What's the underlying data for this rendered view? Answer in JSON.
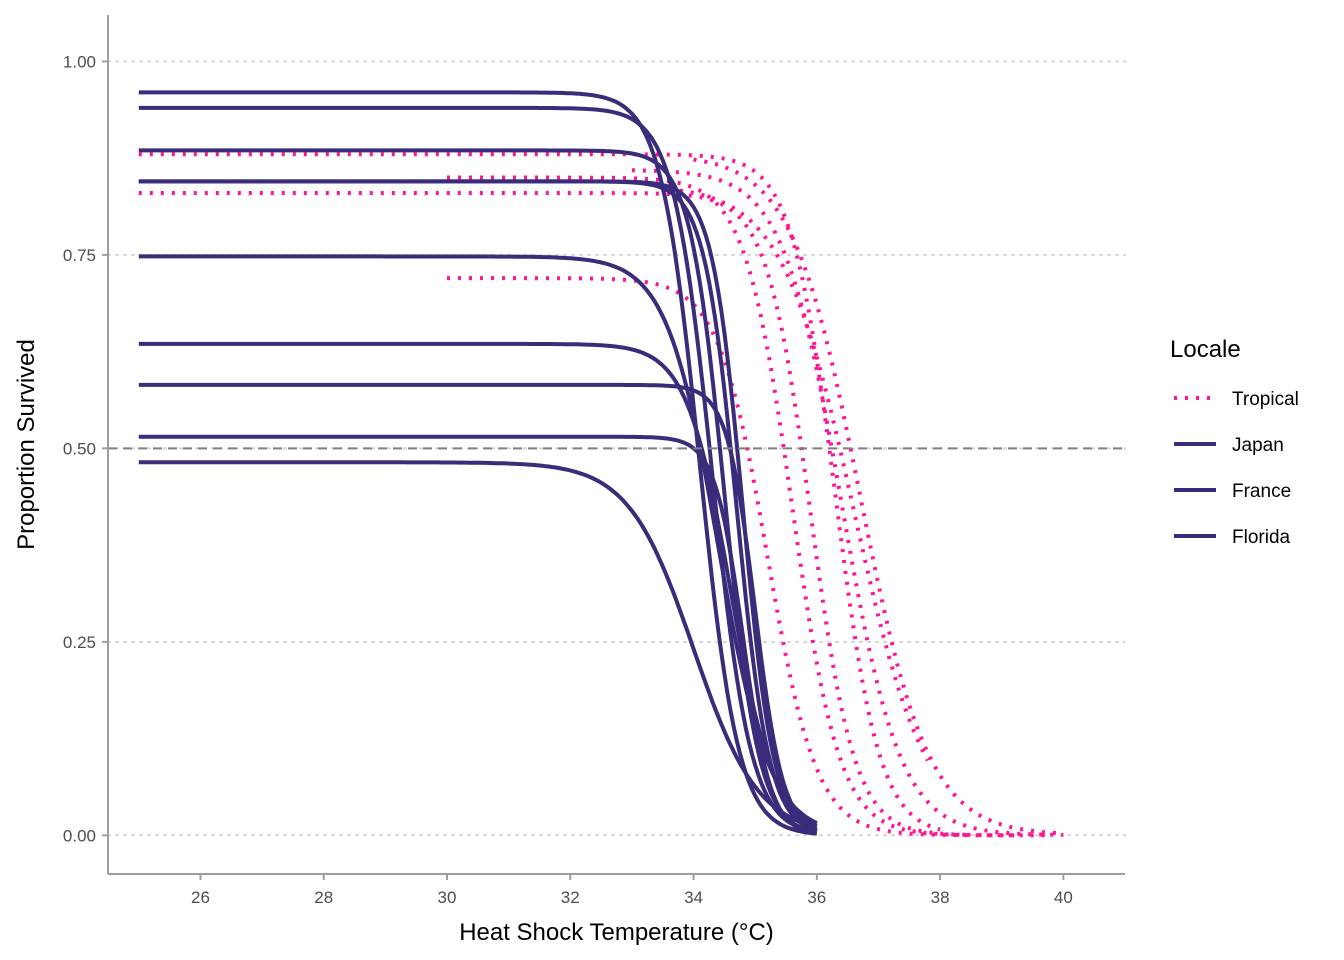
{
  "chart_data": {
    "type": "line",
    "xlabel": "Heat Shock Temperature (°C)",
    "ylabel": "Proportion Survived",
    "xlim": [
      24.5,
      41.0
    ],
    "ylim": [
      -0.05,
      1.06
    ],
    "x_ticks": [
      26,
      28,
      30,
      32,
      34,
      36,
      38,
      40
    ],
    "x_tick_labels": [
      "26",
      "28",
      "30",
      "32",
      "34",
      "36",
      "38",
      "40"
    ],
    "y_ticks": [
      0.0,
      0.25,
      0.5,
      0.75,
      1.0
    ],
    "y_tick_labels": [
      "0.00",
      "0.25",
      "0.50",
      "0.75",
      "1.00"
    ],
    "grid": "horizontal-dotted",
    "reference_line": {
      "y": 0.5,
      "style": "dashed",
      "color": "#7f7f7f"
    },
    "legend": {
      "title": "Locale",
      "placement": "right",
      "entries": [
        {
          "label": "Tropical",
          "color": "#ff1493",
          "style": "dotted"
        },
        {
          "label": "Japan",
          "color": "#3a2c7a",
          "style": "solid"
        },
        {
          "label": "France",
          "color": "#3a2c7a",
          "style": "solid"
        },
        {
          "label": "Florida",
          "color": "#3a2c7a",
          "style": "solid"
        }
      ]
    },
    "colors": {
      "tropical": "#ff1493",
      "temperate": "#3a2c7a"
    },
    "series": [
      {
        "group": "Tropical",
        "x_range": [
          25,
          38.0
        ],
        "max": 0.88,
        "midpoint": 36.3,
        "slope": 2.8
      },
      {
        "group": "Tropical",
        "x_range": [
          25,
          38.5
        ],
        "max": 0.83,
        "midpoint": 35.9,
        "slope": 2.8
      },
      {
        "group": "Tropical",
        "x_range": [
          30,
          39.2
        ],
        "max": 0.85,
        "midpoint": 35.6,
        "slope": 2.6
      },
      {
        "group": "Tropical",
        "x_range": [
          30,
          39.8
        ],
        "max": 0.72,
        "midpoint": 35.2,
        "slope": 2.5
      },
      {
        "group": "Tropical",
        "x_range": [
          33,
          40.0
        ],
        "max": 0.86,
        "midpoint": 36.4,
        "slope": 2.1
      },
      {
        "group": "Tropical",
        "x_range": [
          34,
          40.0
        ],
        "max": 0.88,
        "midpoint": 36.7,
        "slope": 1.8
      },
      {
        "group": "Tropical",
        "x_range": [
          33.6,
          37.8
        ],
        "max": 0.84,
        "midpoint": 36.6,
        "slope": 1.7
      },
      {
        "group": "Japan",
        "x_range": [
          25,
          36
        ],
        "max": 0.96,
        "midpoint": 34.1,
        "slope": 3.2
      },
      {
        "group": "Japan",
        "x_range": [
          25,
          36
        ],
        "max": 0.94,
        "midpoint": 34.3,
        "slope": 3.2
      },
      {
        "group": "Japan",
        "x_range": [
          25,
          36
        ],
        "max": 0.885,
        "midpoint": 34.5,
        "slope": 3.6
      },
      {
        "group": "France",
        "x_range": [
          25,
          36
        ],
        "max": 0.845,
        "midpoint": 34.7,
        "slope": 3.8
      },
      {
        "group": "France",
        "x_range": [
          25,
          36
        ],
        "max": 0.845,
        "midpoint": 34.8,
        "slope": 4.0
      },
      {
        "group": "France",
        "x_range": [
          25,
          36
        ],
        "max": 0.748,
        "midpoint": 34.4,
        "slope": 2.4
      },
      {
        "group": "Florida",
        "x_range": [
          25,
          36
        ],
        "max": 0.635,
        "midpoint": 34.6,
        "slope": 2.8
      },
      {
        "group": "Florida",
        "x_range": [
          25,
          36
        ],
        "max": 0.582,
        "midpoint": 35.0,
        "slope": 4.4
      },
      {
        "group": "Florida",
        "x_range": [
          25,
          36
        ],
        "max": 0.515,
        "midpoint": 34.8,
        "slope": 4.4
      },
      {
        "group": "Florida",
        "x_range": [
          25,
          36
        ],
        "max": 0.482,
        "midpoint": 34.0,
        "slope": 1.9
      }
    ]
  }
}
